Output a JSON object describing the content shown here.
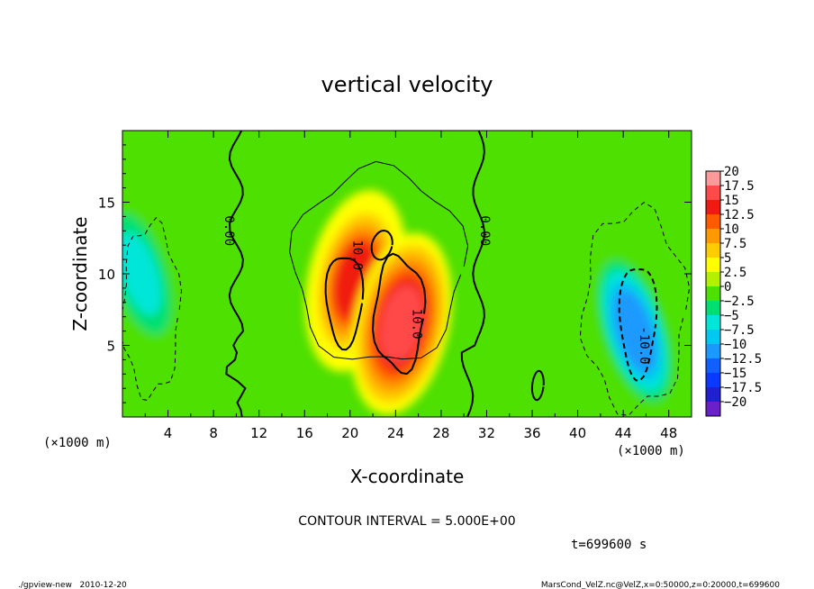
{
  "chart_data": {
    "type": "heatmap",
    "title": "vertical velocity",
    "xlabel": "X-coordinate",
    "ylabel": "Z-coordinate",
    "xlim": [
      0,
      50
    ],
    "ylim": [
      0,
      20
    ],
    "x_ticks": [
      4,
      8,
      12,
      16,
      20,
      24,
      28,
      32,
      36,
      40,
      44,
      48
    ],
    "y_ticks": [
      5,
      10,
      15
    ],
    "x_unit_label": "(×1000 m)",
    "y_unit_label": "(×1000 m)",
    "contour_interval_text": "CONTOUR INTERVAL = 5.000E+00",
    "contour_labels": [
      {
        "text": "0.00",
        "x": 9.0,
        "z": 13.0
      },
      {
        "text": "0.00",
        "x": 31.5,
        "z": 13.0
      },
      {
        "text": "10.0",
        "x": 20.3,
        "z": 11.3
      },
      {
        "text": "10.0",
        "x": 25.5,
        "z": 6.5
      },
      {
        "text": "-10.0",
        "x": 45.5,
        "z": 5.0
      }
    ],
    "colorbar": {
      "levels": [
        20,
        17.5,
        15,
        12.5,
        10,
        7.5,
        5,
        2.5,
        0,
        -2.5,
        -5,
        -7.5,
        -10,
        -12.5,
        -15,
        -17.5,
        -20
      ],
      "labels": [
        "20",
        "17.5",
        "15",
        "12.5",
        "10",
        "7.5",
        "5",
        "2.5",
        "0",
        "−2.5",
        "−5",
        "−7.5",
        "−10",
        "−12.5",
        "−15",
        "−17.5",
        "−20"
      ],
      "colors": [
        "#ff9a9a",
        "#ff4a4a",
        "#f01a10",
        "#ff5a00",
        "#ff9900",
        "#ffcc00",
        "#ffff00",
        "#b4f000",
        "#4ee000",
        "#00e070",
        "#00e6d8",
        "#00c8f0",
        "#1a9aff",
        "#1060ff",
        "#0a3aff",
        "#2020d0",
        "#6a20c8"
      ]
    },
    "features": [
      {
        "kind": "updraft",
        "x": 20.5,
        "z": 9.5,
        "peak": 12.5
      },
      {
        "kind": "updraft",
        "x": 24.5,
        "z": 6.5,
        "peak": 15.5
      },
      {
        "kind": "downdraft",
        "x": 45.0,
        "z": 6.0,
        "peak": -12.0
      },
      {
        "kind": "downdraft",
        "x": 1.5,
        "z": 10.0,
        "peak": -6.5
      }
    ]
  },
  "time_label": "t=699600 s",
  "footer_left": "./gpview-new   2010-12-20",
  "footer_right": "MarsCond_VelZ.nc@VelZ,x=0:50000,z=0:20000,t=699600"
}
